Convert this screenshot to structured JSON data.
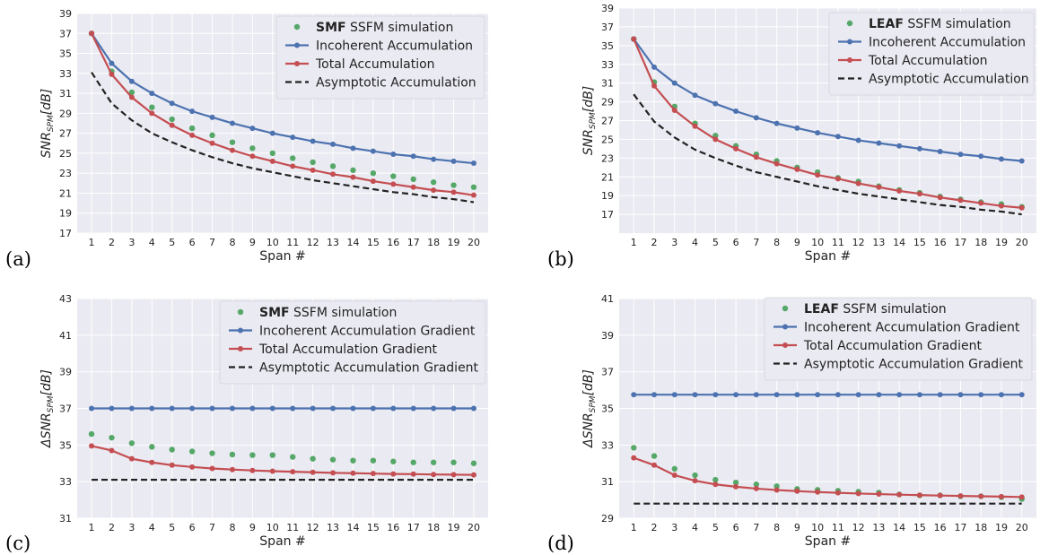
{
  "panel_letters": [
    "(a)",
    "(b)",
    "(c)",
    "(d)"
  ],
  "colors": {
    "incoherent": "#4c72b0",
    "total": "#c44e52",
    "simulation": "#55a868",
    "asymptotic": "#222222",
    "background": "#eaeaf2",
    "grid": "#ffffff"
  },
  "chart_data": [
    {
      "type": "line",
      "panel": "(a)",
      "xlabel": "Span #",
      "ylabel_main": "SNR",
      "ylabel_sub": "SPM",
      "ylabel_suffix": "[dB]",
      "ylim": [
        17,
        39
      ],
      "yticks": [
        17,
        19,
        21,
        23,
        25,
        27,
        29,
        31,
        33,
        35,
        37,
        39
      ],
      "x": [
        1,
        2,
        3,
        4,
        5,
        6,
        7,
        8,
        9,
        10,
        11,
        12,
        13,
        14,
        15,
        16,
        17,
        18,
        19,
        20
      ],
      "legend": {
        "position": "top-right",
        "sim_bold": "SMF",
        "sim_rest": " SSFM simulation",
        "incoherent": "Incoherent Accumulation",
        "total": "Total Accumulation",
        "asymptotic": "Asymptotic Accumulation"
      },
      "series": [
        {
          "key": "simulation",
          "style": "dots",
          "values": [
            37.0,
            33.2,
            31.1,
            29.6,
            28.4,
            27.5,
            26.8,
            26.1,
            25.5,
            25.0,
            24.5,
            24.1,
            23.7,
            23.3,
            23.0,
            22.7,
            22.4,
            22.1,
            21.8,
            21.6
          ]
        },
        {
          "key": "incoherent",
          "style": "line-marker",
          "values": [
            37.0,
            34.0,
            32.2,
            31.0,
            30.0,
            29.2,
            28.6,
            28.0,
            27.5,
            27.0,
            26.6,
            26.2,
            25.9,
            25.5,
            25.2,
            24.9,
            24.7,
            24.4,
            24.2,
            24.0
          ]
        },
        {
          "key": "total",
          "style": "line-marker",
          "values": [
            37.0,
            32.9,
            30.6,
            29.0,
            27.8,
            26.8,
            26.0,
            25.3,
            24.7,
            24.2,
            23.7,
            23.3,
            22.9,
            22.6,
            22.2,
            21.9,
            21.6,
            21.3,
            21.1,
            20.8
          ]
        },
        {
          "key": "asymptotic",
          "style": "dashed",
          "values": [
            33.1,
            30.0,
            28.3,
            27.0,
            26.1,
            25.3,
            24.6,
            24.0,
            23.5,
            23.1,
            22.7,
            22.3,
            22.0,
            21.7,
            21.4,
            21.1,
            20.9,
            20.6,
            20.4,
            20.1
          ]
        }
      ]
    },
    {
      "type": "line",
      "panel": "(b)",
      "xlabel": "Span #",
      "ylabel_main": "SNR",
      "ylabel_sub": "SPM",
      "ylabel_suffix": "[dB]",
      "ylim": [
        15,
        39
      ],
      "yticks": [
        17,
        19,
        21,
        23,
        25,
        27,
        29,
        31,
        33,
        35,
        37,
        39
      ],
      "x": [
        1,
        2,
        3,
        4,
        5,
        6,
        7,
        8,
        9,
        10,
        11,
        12,
        13,
        14,
        15,
        16,
        17,
        18,
        19,
        20
      ],
      "legend": {
        "position": "top-right",
        "sim_bold": "LEAF",
        "sim_rest": " SSFM simulation",
        "incoherent": "Incoherent Accumulation",
        "total": "Total Accumulation",
        "asymptotic": "Asymptotic Accumulation"
      },
      "series": [
        {
          "key": "simulation",
          "style": "dots",
          "values": [
            35.7,
            31.1,
            28.5,
            26.7,
            25.4,
            24.3,
            23.4,
            22.7,
            22.0,
            21.5,
            20.9,
            20.5,
            20.0,
            19.6,
            19.3,
            18.9,
            18.6,
            18.3,
            18.1,
            17.8
          ]
        },
        {
          "key": "incoherent",
          "style": "line-marker",
          "values": [
            35.7,
            32.7,
            31.0,
            29.7,
            28.8,
            28.0,
            27.3,
            26.7,
            26.2,
            25.7,
            25.3,
            24.9,
            24.6,
            24.3,
            24.0,
            23.7,
            23.4,
            23.2,
            22.9,
            22.7
          ]
        },
        {
          "key": "total",
          "style": "line-marker",
          "values": [
            35.7,
            30.7,
            28.1,
            26.4,
            25.0,
            24.0,
            23.1,
            22.4,
            21.8,
            21.2,
            20.8,
            20.3,
            19.9,
            19.5,
            19.2,
            18.8,
            18.5,
            18.2,
            17.9,
            17.7
          ]
        },
        {
          "key": "asymptotic",
          "style": "dashed",
          "values": [
            29.8,
            26.9,
            25.2,
            23.9,
            23.0,
            22.2,
            21.5,
            21.0,
            20.5,
            20.0,
            19.6,
            19.2,
            18.9,
            18.6,
            18.3,
            18.0,
            17.8,
            17.5,
            17.3,
            17.0
          ]
        }
      ]
    },
    {
      "type": "line",
      "panel": "(c)",
      "xlabel": "Span #",
      "ylabel_main": "ΔSNR",
      "ylabel_sub": "SPM",
      "ylabel_suffix": "[dB]",
      "ylim": [
        31,
        43
      ],
      "yticks": [
        31,
        33,
        35,
        37,
        39,
        41,
        43
      ],
      "x": [
        1,
        2,
        3,
        4,
        5,
        6,
        7,
        8,
        9,
        10,
        11,
        12,
        13,
        14,
        15,
        16,
        17,
        18,
        19,
        20
      ],
      "legend": {
        "position": "top-right",
        "sim_bold": "SMF",
        "sim_rest": " SSFM simulation",
        "incoherent": "Incoherent Accumulation Gradient",
        "total": "Total Accumulation Gradient",
        "asymptotic": "Asymptotic Accumulation Gradient"
      },
      "series": [
        {
          "key": "simulation",
          "style": "dots",
          "values": [
            35.6,
            35.4,
            35.1,
            34.9,
            34.75,
            34.65,
            34.55,
            34.48,
            34.45,
            34.45,
            34.35,
            34.25,
            34.2,
            34.15,
            34.15,
            34.1,
            34.05,
            34.05,
            34.05,
            34.0
          ]
        },
        {
          "key": "incoherent",
          "style": "line-marker",
          "values": [
            37.0,
            37.0,
            37.0,
            37.0,
            37.0,
            37.0,
            37.0,
            37.0,
            37.0,
            37.0,
            37.0,
            37.0,
            37.0,
            37.0,
            37.0,
            37.0,
            37.0,
            37.0,
            37.0,
            37.0
          ]
        },
        {
          "key": "total",
          "style": "line-marker",
          "values": [
            34.95,
            34.7,
            34.25,
            34.05,
            33.9,
            33.8,
            33.72,
            33.66,
            33.61,
            33.57,
            33.54,
            33.51,
            33.48,
            33.46,
            33.44,
            33.42,
            33.41,
            33.39,
            33.38,
            33.37
          ]
        },
        {
          "key": "asymptotic",
          "style": "dashed",
          "values": [
            33.1,
            33.1,
            33.1,
            33.1,
            33.1,
            33.1,
            33.1,
            33.1,
            33.1,
            33.1,
            33.1,
            33.1,
            33.1,
            33.1,
            33.1,
            33.1,
            33.1,
            33.1,
            33.1,
            33.1
          ]
        }
      ]
    },
    {
      "type": "line",
      "panel": "(d)",
      "xlabel": "Span #",
      "ylabel_main": "ΔSNR",
      "ylabel_sub": "SPM",
      "ylabel_suffix": "[dB]",
      "ylim": [
        29,
        41
      ],
      "yticks": [
        29,
        31,
        33,
        35,
        37,
        39,
        41
      ],
      "x": [
        1,
        2,
        3,
        4,
        5,
        6,
        7,
        8,
        9,
        10,
        11,
        12,
        13,
        14,
        15,
        16,
        17,
        18,
        19,
        20
      ],
      "legend": {
        "position": "top-right",
        "sim_bold": "LEAF",
        "sim_rest": " SSFM simulation",
        "incoherent": "Incoherent Accumulation Gradient",
        "total": "Total Accumulation Gradient",
        "asymptotic": "Asymptotic Accumulation Gradient"
      },
      "series": [
        {
          "key": "simulation",
          "style": "dots",
          "values": [
            32.85,
            32.4,
            31.7,
            31.35,
            31.1,
            30.95,
            30.85,
            30.75,
            30.6,
            30.55,
            30.5,
            30.45,
            30.4,
            30.3,
            30.25,
            30.25,
            30.2,
            30.2,
            30.15,
            30.05
          ]
        },
        {
          "key": "incoherent",
          "style": "line-marker",
          "values": [
            35.75,
            35.75,
            35.75,
            35.75,
            35.75,
            35.75,
            35.75,
            35.75,
            35.75,
            35.75,
            35.75,
            35.75,
            35.75,
            35.75,
            35.75,
            35.75,
            35.75,
            35.75,
            35.75,
            35.75
          ]
        },
        {
          "key": "total",
          "style": "line-marker",
          "values": [
            32.3,
            31.9,
            31.35,
            31.05,
            30.85,
            30.72,
            30.62,
            30.54,
            30.48,
            30.43,
            30.39,
            30.35,
            30.32,
            30.29,
            30.26,
            30.24,
            30.22,
            30.2,
            30.18,
            30.16
          ]
        },
        {
          "key": "asymptotic",
          "style": "dashed",
          "values": [
            29.8,
            29.8,
            29.8,
            29.8,
            29.8,
            29.8,
            29.8,
            29.8,
            29.8,
            29.8,
            29.8,
            29.8,
            29.8,
            29.8,
            29.8,
            29.8,
            29.8,
            29.8,
            29.8,
            29.8
          ]
        }
      ]
    }
  ]
}
